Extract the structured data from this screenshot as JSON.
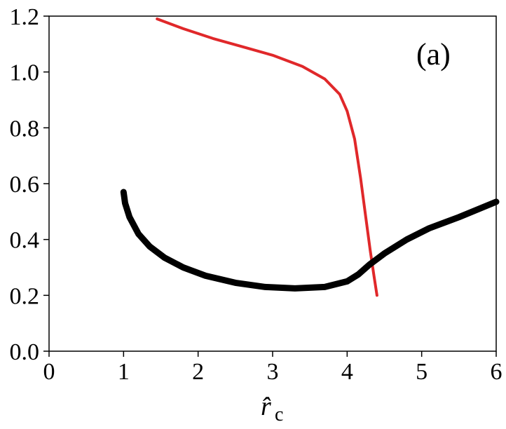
{
  "chart_data": {
    "type": "line",
    "panel_label": "(a)",
    "xlabel_main": "r̂",
    "xlabel_sub": "c",
    "xlim": [
      0,
      6
    ],
    "ylim": [
      0.0,
      1.2
    ],
    "x_ticks": [
      "0",
      "1",
      "2",
      "3",
      "4",
      "5",
      "6"
    ],
    "y_ticks": [
      "0.0",
      "0.2",
      "0.4",
      "0.6",
      "0.8",
      "1.0",
      "1.2"
    ],
    "grid": false,
    "series": [
      {
        "color": "#e0282a",
        "points": [
          [
            1.45,
            1.19
          ],
          [
            1.8,
            1.155
          ],
          [
            2.2,
            1.12
          ],
          [
            2.6,
            1.09
          ],
          [
            3.0,
            1.06
          ],
          [
            3.4,
            1.02
          ],
          [
            3.7,
            0.975
          ],
          [
            3.9,
            0.92
          ],
          [
            4.0,
            0.86
          ],
          [
            4.1,
            0.76
          ],
          [
            4.18,
            0.62
          ],
          [
            4.25,
            0.48
          ],
          [
            4.31,
            0.36
          ],
          [
            4.36,
            0.27
          ],
          [
            4.4,
            0.2
          ]
        ]
      },
      {
        "color": "#000000",
        "points": [
          [
            1.0,
            0.57
          ],
          [
            1.02,
            0.53
          ],
          [
            1.08,
            0.48
          ],
          [
            1.2,
            0.42
          ],
          [
            1.35,
            0.375
          ],
          [
            1.55,
            0.335
          ],
          [
            1.8,
            0.3
          ],
          [
            2.1,
            0.27
          ],
          [
            2.5,
            0.245
          ],
          [
            2.9,
            0.23
          ],
          [
            3.3,
            0.225
          ],
          [
            3.7,
            0.23
          ],
          [
            4.0,
            0.25
          ],
          [
            4.15,
            0.275
          ],
          [
            4.3,
            0.31
          ],
          [
            4.5,
            0.35
          ],
          [
            4.8,
            0.4
          ],
          [
            5.1,
            0.44
          ],
          [
            5.5,
            0.48
          ],
          [
            6.0,
            0.535
          ]
        ]
      }
    ]
  }
}
